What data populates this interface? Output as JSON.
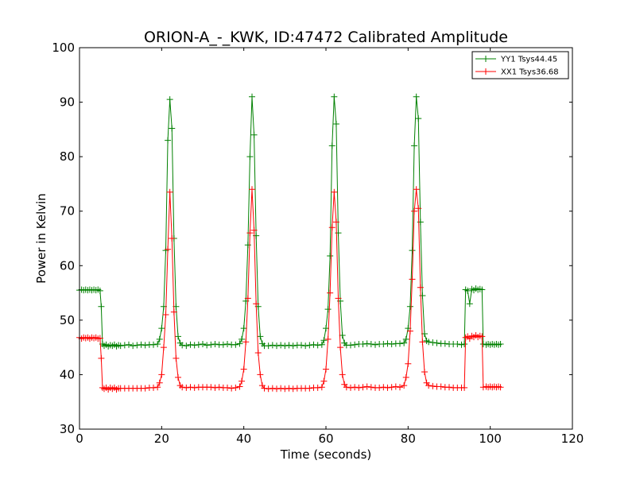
{
  "chart_data": {
    "type": "line",
    "title": "ORION-A_-_KWK, ID:47472 Calibrated Amplitude",
    "xlabel": "Time (seconds)",
    "ylabel": "Power in Kelvin",
    "xlim": [
      0,
      120
    ],
    "ylim": [
      30,
      100
    ],
    "x_ticks": [
      0,
      20,
      40,
      60,
      80,
      100,
      120
    ],
    "y_ticks": [
      30,
      40,
      50,
      60,
      70,
      80,
      90,
      100
    ],
    "x_tick_labels": [
      "0",
      "20",
      "40",
      "60",
      "80",
      "100",
      "120"
    ],
    "y_tick_labels": [
      "30",
      "40",
      "50",
      "60",
      "70",
      "80",
      "90",
      "100"
    ],
    "grid": false,
    "legend_position": "top-right",
    "marker": "+",
    "series": [
      {
        "name": "YY1 Tsys44.45",
        "color": "#008000",
        "points": [
          [
            0.0,
            55.5
          ],
          [
            0.5,
            55.6
          ],
          [
            1.0,
            55.5
          ],
          [
            1.5,
            55.6
          ],
          [
            2.0,
            55.5
          ],
          [
            2.5,
            55.6
          ],
          [
            3.0,
            55.5
          ],
          [
            3.5,
            55.6
          ],
          [
            4.0,
            55.5
          ],
          [
            4.5,
            55.6
          ],
          [
            5.0,
            55.4
          ],
          [
            5.3,
            52.5
          ],
          [
            5.6,
            45.6
          ],
          [
            6.0,
            45.3
          ],
          [
            6.5,
            45.5
          ],
          [
            7.0,
            45.2
          ],
          [
            7.5,
            45.4
          ],
          [
            8.0,
            45.3
          ],
          [
            8.5,
            45.5
          ],
          [
            9.0,
            45.2
          ],
          [
            9.5,
            45.4
          ],
          [
            10.0,
            45.3
          ],
          [
            11.0,
            45.4
          ],
          [
            12.0,
            45.5
          ],
          [
            13.0,
            45.3
          ],
          [
            14.0,
            45.4
          ],
          [
            15.0,
            45.5
          ],
          [
            16.0,
            45.4
          ],
          [
            17.0,
            45.5
          ],
          [
            18.0,
            45.5
          ],
          [
            19.0,
            45.6
          ],
          [
            19.5,
            46.5
          ],
          [
            20.0,
            48.5
          ],
          [
            20.5,
            52.5
          ],
          [
            21.0,
            62.8
          ],
          [
            21.5,
            83.0
          ],
          [
            22.0,
            90.5
          ],
          [
            22.5,
            85.2
          ],
          [
            23.0,
            65.0
          ],
          [
            23.5,
            52.5
          ],
          [
            24.0,
            47.0
          ],
          [
            24.5,
            45.8
          ],
          [
            25.0,
            45.4
          ],
          [
            26.0,
            45.3
          ],
          [
            27.0,
            45.5
          ],
          [
            28.0,
            45.4
          ],
          [
            29.0,
            45.5
          ],
          [
            30.0,
            45.6
          ],
          [
            31.0,
            45.4
          ],
          [
            32.0,
            45.5
          ],
          [
            33.0,
            45.6
          ],
          [
            34.0,
            45.5
          ],
          [
            35.0,
            45.5
          ],
          [
            36.0,
            45.6
          ],
          [
            37.0,
            45.5
          ],
          [
            38.0,
            45.5
          ],
          [
            39.0,
            45.7
          ],
          [
            39.5,
            46.5
          ],
          [
            40.0,
            48.5
          ],
          [
            40.5,
            53.5
          ],
          [
            41.0,
            63.8
          ],
          [
            41.5,
            80.0
          ],
          [
            42.0,
            91.0
          ],
          [
            42.5,
            84.0
          ],
          [
            43.0,
            65.5
          ],
          [
            43.5,
            52.5
          ],
          [
            44.0,
            47.0
          ],
          [
            44.5,
            45.7
          ],
          [
            45.0,
            45.3
          ],
          [
            46.0,
            45.3
          ],
          [
            47.0,
            45.4
          ],
          [
            48.0,
            45.3
          ],
          [
            49.0,
            45.4
          ],
          [
            50.0,
            45.3
          ],
          [
            51.0,
            45.4
          ],
          [
            52.0,
            45.3
          ],
          [
            53.0,
            45.4
          ],
          [
            54.0,
            45.4
          ],
          [
            55.0,
            45.3
          ],
          [
            56.0,
            45.4
          ],
          [
            57.0,
            45.5
          ],
          [
            58.0,
            45.4
          ],
          [
            59.0,
            45.5
          ],
          [
            59.5,
            46.3
          ],
          [
            60.0,
            48.5
          ],
          [
            60.5,
            52.0
          ],
          [
            61.0,
            61.8
          ],
          [
            61.5,
            82.0
          ],
          [
            62.0,
            91.0
          ],
          [
            62.5,
            86.0
          ],
          [
            63.0,
            66.0
          ],
          [
            63.5,
            53.5
          ],
          [
            64.0,
            47.2
          ],
          [
            64.5,
            45.8
          ],
          [
            65.0,
            45.4
          ],
          [
            66.0,
            45.4
          ],
          [
            67.0,
            45.5
          ],
          [
            68.0,
            45.6
          ],
          [
            69.0,
            45.6
          ],
          [
            70.0,
            45.7
          ],
          [
            71.0,
            45.6
          ],
          [
            72.0,
            45.5
          ],
          [
            73.0,
            45.6
          ],
          [
            74.0,
            45.6
          ],
          [
            75.0,
            45.7
          ],
          [
            76.0,
            45.6
          ],
          [
            77.0,
            45.7
          ],
          [
            78.0,
            45.7
          ],
          [
            79.0,
            45.8
          ],
          [
            79.5,
            46.5
          ],
          [
            80.0,
            48.5
          ],
          [
            80.5,
            52.5
          ],
          [
            81.0,
            62.8
          ],
          [
            81.5,
            82.0
          ],
          [
            82.0,
            91.0
          ],
          [
            82.5,
            87.0
          ],
          [
            83.0,
            68.0
          ],
          [
            83.5,
            54.5
          ],
          [
            84.0,
            47.5
          ],
          [
            84.5,
            46.2
          ],
          [
            85.0,
            46.0
          ],
          [
            86.0,
            45.9
          ],
          [
            87.0,
            45.8
          ],
          [
            88.0,
            45.7
          ],
          [
            89.0,
            45.7
          ],
          [
            90.0,
            45.6
          ],
          [
            91.0,
            45.6
          ],
          [
            92.0,
            45.6
          ],
          [
            93.0,
            45.5
          ],
          [
            93.7,
            45.6
          ],
          [
            94.0,
            55.6
          ],
          [
            94.5,
            55.4
          ],
          [
            95.0,
            53.0
          ],
          [
            95.5,
            55.7
          ],
          [
            96.0,
            55.5
          ],
          [
            96.5,
            55.8
          ],
          [
            97.0,
            55.6
          ],
          [
            97.5,
            55.7
          ],
          [
            98.0,
            55.6
          ],
          [
            98.3,
            45.6
          ],
          [
            99.0,
            45.5
          ],
          [
            99.5,
            45.6
          ],
          [
            100.0,
            45.5
          ],
          [
            100.5,
            45.6
          ],
          [
            101.0,
            45.5
          ],
          [
            101.5,
            45.6
          ],
          [
            102.0,
            45.5
          ],
          [
            102.5,
            45.6
          ]
        ]
      },
      {
        "name": "XX1 Tsys36.68",
        "color": "#ff0000",
        "points": [
          [
            0.0,
            46.8
          ],
          [
            0.5,
            46.6
          ],
          [
            1.0,
            46.8
          ],
          [
            1.5,
            46.7
          ],
          [
            2.0,
            46.8
          ],
          [
            2.5,
            46.6
          ],
          [
            3.0,
            46.8
          ],
          [
            3.5,
            46.7
          ],
          [
            4.0,
            46.8
          ],
          [
            4.5,
            46.6
          ],
          [
            5.0,
            46.7
          ],
          [
            5.3,
            43.0
          ],
          [
            5.6,
            37.6
          ],
          [
            6.0,
            37.4
          ],
          [
            6.5,
            37.6
          ],
          [
            7.0,
            37.3
          ],
          [
            7.5,
            37.6
          ],
          [
            8.0,
            37.4
          ],
          [
            8.5,
            37.6
          ],
          [
            9.0,
            37.3
          ],
          [
            9.5,
            37.5
          ],
          [
            10.0,
            37.5
          ],
          [
            11.0,
            37.5
          ],
          [
            12.0,
            37.5
          ],
          [
            13.0,
            37.5
          ],
          [
            14.0,
            37.5
          ],
          [
            15.0,
            37.5
          ],
          [
            16.0,
            37.5
          ],
          [
            17.0,
            37.6
          ],
          [
            18.0,
            37.6
          ],
          [
            19.0,
            37.7
          ],
          [
            19.5,
            38.5
          ],
          [
            20.0,
            40.0
          ],
          [
            20.5,
            45.0
          ],
          [
            21.0,
            51.0
          ],
          [
            21.5,
            63.0
          ],
          [
            22.0,
            73.5
          ],
          [
            22.5,
            65.0
          ],
          [
            23.0,
            51.5
          ],
          [
            23.5,
            43.0
          ],
          [
            24.0,
            39.5
          ],
          [
            24.5,
            38.0
          ],
          [
            25.0,
            37.7
          ],
          [
            26.0,
            37.6
          ],
          [
            27.0,
            37.7
          ],
          [
            28.0,
            37.6
          ],
          [
            29.0,
            37.7
          ],
          [
            30.0,
            37.7
          ],
          [
            31.0,
            37.7
          ],
          [
            32.0,
            37.7
          ],
          [
            33.0,
            37.6
          ],
          [
            34.0,
            37.7
          ],
          [
            35.0,
            37.6
          ],
          [
            36.0,
            37.6
          ],
          [
            37.0,
            37.5
          ],
          [
            38.0,
            37.6
          ],
          [
            39.0,
            37.8
          ],
          [
            39.5,
            38.8
          ],
          [
            40.0,
            41.0
          ],
          [
            40.5,
            46.0
          ],
          [
            41.0,
            54.0
          ],
          [
            41.5,
            66.0
          ],
          [
            42.0,
            74.0
          ],
          [
            42.5,
            66.5
          ],
          [
            43.0,
            53.0
          ],
          [
            43.5,
            44.0
          ],
          [
            44.0,
            40.0
          ],
          [
            44.5,
            38.0
          ],
          [
            45.0,
            37.5
          ],
          [
            46.0,
            37.4
          ],
          [
            47.0,
            37.5
          ],
          [
            48.0,
            37.4
          ],
          [
            49.0,
            37.5
          ],
          [
            50.0,
            37.4
          ],
          [
            51.0,
            37.5
          ],
          [
            52.0,
            37.4
          ],
          [
            53.0,
            37.5
          ],
          [
            54.0,
            37.5
          ],
          [
            55.0,
            37.5
          ],
          [
            56.0,
            37.5
          ],
          [
            57.0,
            37.6
          ],
          [
            58.0,
            37.6
          ],
          [
            59.0,
            37.7
          ],
          [
            59.5,
            38.8
          ],
          [
            60.0,
            41.0
          ],
          [
            60.5,
            46.5
          ],
          [
            61.0,
            55.0
          ],
          [
            61.5,
            67.0
          ],
          [
            62.0,
            73.5
          ],
          [
            62.5,
            68.0
          ],
          [
            63.0,
            54.0
          ],
          [
            63.5,
            45.0
          ],
          [
            64.0,
            40.0
          ],
          [
            64.5,
            38.2
          ],
          [
            65.0,
            37.7
          ],
          [
            66.0,
            37.6
          ],
          [
            67.0,
            37.7
          ],
          [
            68.0,
            37.6
          ],
          [
            69.0,
            37.7
          ],
          [
            70.0,
            37.8
          ],
          [
            71.0,
            37.7
          ],
          [
            72.0,
            37.6
          ],
          [
            73.0,
            37.6
          ],
          [
            74.0,
            37.7
          ],
          [
            75.0,
            37.6
          ],
          [
            76.0,
            37.7
          ],
          [
            77.0,
            37.8
          ],
          [
            78.0,
            37.7
          ],
          [
            79.0,
            38.0
          ],
          [
            79.5,
            39.5
          ],
          [
            80.0,
            42.0
          ],
          [
            80.5,
            48.0
          ],
          [
            81.0,
            57.5
          ],
          [
            81.5,
            70.0
          ],
          [
            82.0,
            74.0
          ],
          [
            82.5,
            70.5
          ],
          [
            83.0,
            56.0
          ],
          [
            83.5,
            46.0
          ],
          [
            84.0,
            40.5
          ],
          [
            84.5,
            38.5
          ],
          [
            85.0,
            38.0
          ],
          [
            86.0,
            37.9
          ],
          [
            87.0,
            37.8
          ],
          [
            88.0,
            37.8
          ],
          [
            89.0,
            37.7
          ],
          [
            90.0,
            37.7
          ],
          [
            91.0,
            37.6
          ],
          [
            92.0,
            37.6
          ],
          [
            93.0,
            37.6
          ],
          [
            93.7,
            37.6
          ],
          [
            94.0,
            46.8
          ],
          [
            94.5,
            47.0
          ],
          [
            95.0,
            46.6
          ],
          [
            95.5,
            47.1
          ],
          [
            96.0,
            46.9
          ],
          [
            96.5,
            47.2
          ],
          [
            97.0,
            46.9
          ],
          [
            97.5,
            47.1
          ],
          [
            98.0,
            47.0
          ],
          [
            98.3,
            37.7
          ],
          [
            99.0,
            37.8
          ],
          [
            99.5,
            37.7
          ],
          [
            100.0,
            37.8
          ],
          [
            100.5,
            37.7
          ],
          [
            101.0,
            37.8
          ],
          [
            101.5,
            37.7
          ],
          [
            102.0,
            37.8
          ],
          [
            102.5,
            37.7
          ]
        ]
      }
    ]
  }
}
